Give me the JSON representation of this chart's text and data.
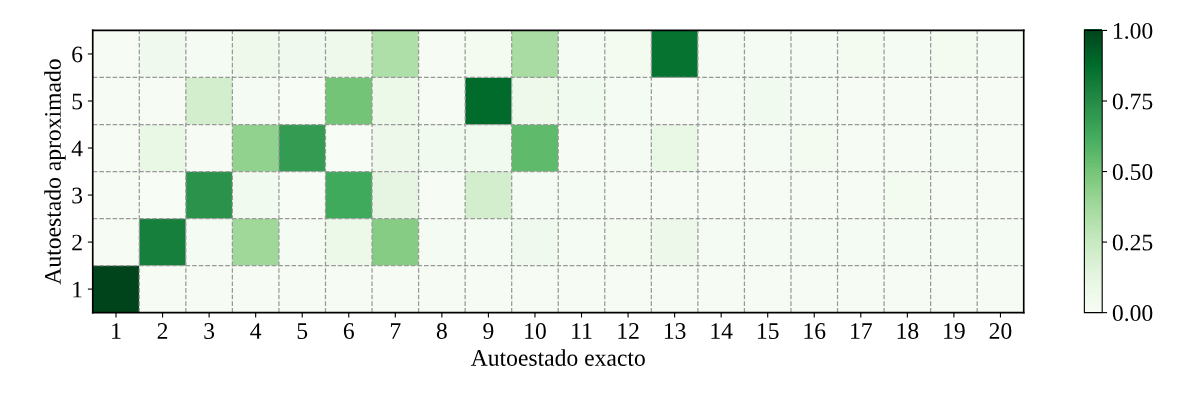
{
  "chart_data": {
    "type": "heatmap",
    "xlabel": "Autoestado exacto",
    "ylabel": "Autoestado aproximado",
    "categories": [
      "1",
      "2",
      "3",
      "4",
      "5",
      "6",
      "7",
      "8",
      "9",
      "10",
      "11",
      "12",
      "13",
      "14",
      "15",
      "16",
      "17",
      "18",
      "19",
      "20"
    ],
    "y_categories": [
      "6",
      "5",
      "4",
      "3",
      "2",
      "1"
    ],
    "cells": [
      [
        0.01,
        0.05,
        0.02,
        0.06,
        0.05,
        0.06,
        0.33,
        0.01,
        0.03,
        0.35,
        0.02,
        0.03,
        0.85,
        0.02,
        0.02,
        0.02,
        0.03,
        0.02,
        0.03,
        0.02
      ],
      [
        0.01,
        0.01,
        0.2,
        0.02,
        0.0,
        0.5,
        0.08,
        0.01,
        0.88,
        0.06,
        0.04,
        0.02,
        0.01,
        0.02,
        0.04,
        0.02,
        0.01,
        0.01,
        0.01,
        0.01
      ],
      [
        0.01,
        0.1,
        0.01,
        0.42,
        0.68,
        0.0,
        0.07,
        0.04,
        0.04,
        0.55,
        0.01,
        0.02,
        0.1,
        0.01,
        0.02,
        0.03,
        0.01,
        0.01,
        0.02,
        0.01
      ],
      [
        0.01,
        0.0,
        0.72,
        0.04,
        0.0,
        0.63,
        0.12,
        0.01,
        0.2,
        0.02,
        0.02,
        0.01,
        0.01,
        0.01,
        0.01,
        0.01,
        0.01,
        0.03,
        0.01,
        0.01
      ],
      [
        0.01,
        0.8,
        0.02,
        0.38,
        0.02,
        0.08,
        0.45,
        0.02,
        0.02,
        0.05,
        0.02,
        0.03,
        0.07,
        0.02,
        0.02,
        0.02,
        0.02,
        0.02,
        0.02,
        0.02
      ],
      [
        1.0,
        0.01,
        0.01,
        0.01,
        0.01,
        0.01,
        0.01,
        0.01,
        0.01,
        0.01,
        0.01,
        0.01,
        0.01,
        0.01,
        0.01,
        0.01,
        0.01,
        0.01,
        0.01,
        0.01
      ]
    ],
    "clim": [
      0,
      1
    ],
    "cticks": [
      {
        "value": 0,
        "label": "0.00"
      },
      {
        "value": 0.25,
        "label": "0.25"
      },
      {
        "value": 0.5,
        "label": "0.50"
      },
      {
        "value": 0.75,
        "label": "0.75"
      },
      {
        "value": 1,
        "label": "1.00"
      }
    ],
    "grid": true
  }
}
